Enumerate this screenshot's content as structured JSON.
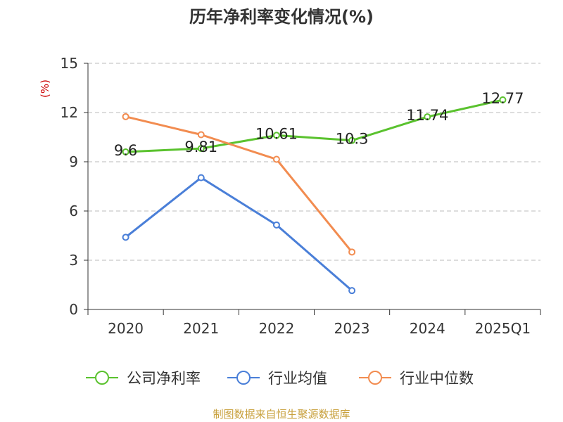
{
  "chart_data": {
    "type": "line",
    "title": "历年净利率变化情况(%)",
    "ylabel": "(%)",
    "categories": [
      "2020",
      "2021",
      "2022",
      "2023",
      "2024",
      "2025Q1"
    ],
    "ylim": [
      0,
      15
    ],
    "yticks": [
      "0",
      "3",
      "6",
      "9",
      "12",
      "15"
    ],
    "grid": true,
    "legend_position": "bottom",
    "series": [
      {
        "name": "公司净利率",
        "color": "#5ac22e",
        "values": [
          9.6,
          9.81,
          10.61,
          10.3,
          11.74,
          12.77
        ],
        "labels": [
          "9.6",
          "9.81",
          "10.61",
          "10.3",
          "11.74",
          "12.77"
        ]
      },
      {
        "name": "行业均值",
        "color": "#4a7fd8",
        "values": [
          4.4,
          8.03,
          5.15,
          1.15,
          null,
          null
        ]
      },
      {
        "name": "行业中位数",
        "color": "#f28c50",
        "values": [
          11.75,
          10.65,
          9.15,
          3.5,
          null,
          null
        ]
      }
    ],
    "ylabel_color": "#cc0000",
    "source": "制图数据来自恒生聚源数据库"
  }
}
